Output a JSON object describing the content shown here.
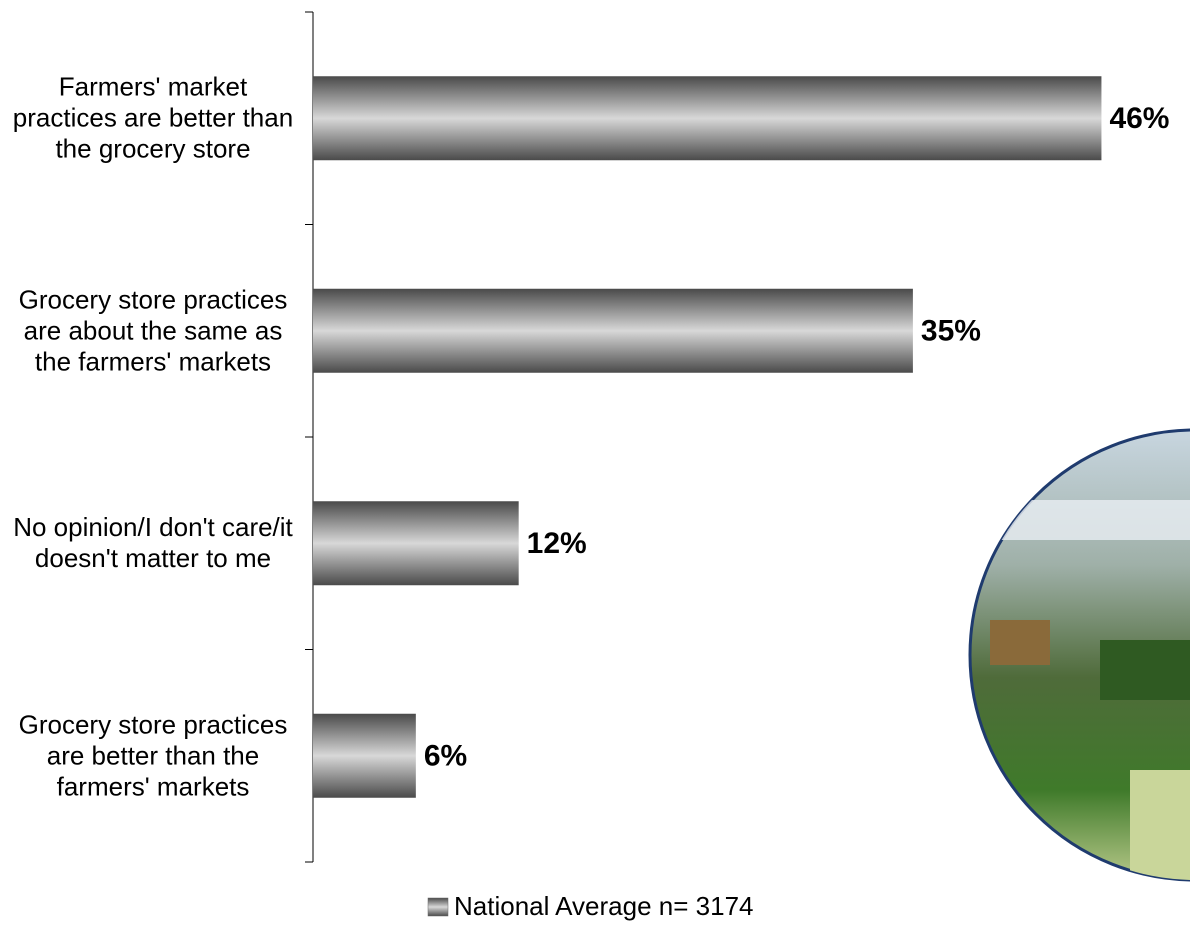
{
  "chart_data": {
    "type": "barh",
    "categories": [
      "Farmers' market practices are better than the grocery store",
      "Grocery store practices are about the same as the farmers' markets",
      "No opinion/I don't care/it doesn't matter to me",
      "Grocery store practices are better than the farmers' markets"
    ],
    "series": [
      {
        "name": "National Average n= 3174",
        "color": "#8c8c8c",
        "values": [
          46,
          35,
          12,
          6
        ],
        "value_labels": [
          "46%",
          "35%",
          "12%",
          "6%"
        ]
      }
    ],
    "xlim": [
      0,
      50
    ]
  }
}
